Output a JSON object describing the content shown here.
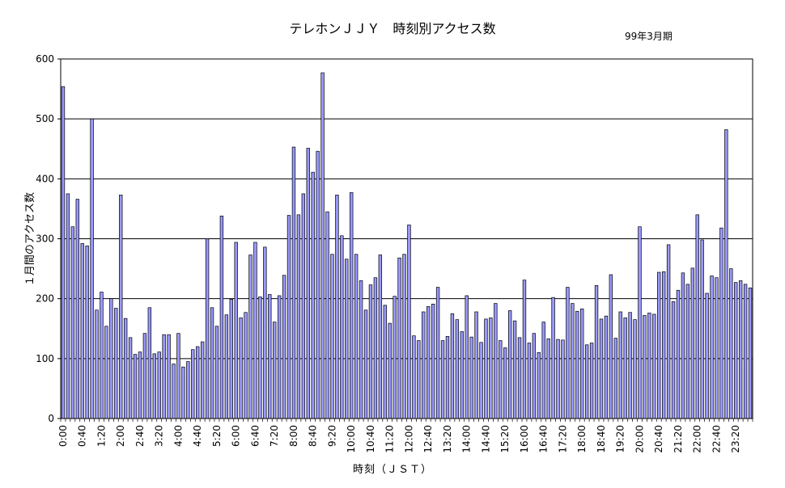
{
  "chart_data": {
    "type": "bar",
    "title": "テレホンＪＪＹ　時刻別アクセス数",
    "subtitle": "99年3月期",
    "xlabel": "時刻（ＪＳＴ）",
    "ylabel": "１月間のアクセス数",
    "ylim": [
      0,
      600
    ],
    "yticks": [
      0,
      100,
      200,
      300,
      400,
      500,
      600
    ],
    "grid": true,
    "bar_color": "#9999ff",
    "interval_minutes": 10,
    "x_tick_labels": [
      "0:00",
      "0:40",
      "1:20",
      "2:00",
      "2:40",
      "3:20",
      "4:00",
      "4:40",
      "5:20",
      "6:00",
      "6:40",
      "7:20",
      "8:00",
      "8:40",
      "9:20",
      "10:00",
      "10:40",
      "11:20",
      "12:00",
      "12:40",
      "13:20",
      "14:00",
      "14:40",
      "15:20",
      "16:00",
      "16:40",
      "17:20",
      "18:00",
      "18:40",
      "19:20",
      "20:00",
      "20:40",
      "21:20",
      "22:00",
      "22:40",
      "23:20"
    ],
    "values": [
      554,
      375,
      320,
      366,
      292,
      288,
      500,
      181,
      211,
      154,
      200,
      184,
      373,
      167,
      135,
      107,
      111,
      142,
      185,
      108,
      111,
      140,
      140,
      91,
      142,
      86,
      95,
      115,
      120,
      128,
      300,
      185,
      154,
      338,
      173,
      199,
      294,
      168,
      177,
      273,
      294,
      203,
      286,
      207,
      161,
      205,
      239,
      339,
      453,
      340,
      375,
      451,
      411,
      446,
      577,
      345,
      274,
      373,
      305,
      266,
      377,
      274,
      230,
      181,
      223,
      235,
      273,
      189,
      159,
      204,
      268,
      274,
      323,
      138,
      130,
      178,
      187,
      191,
      219,
      130,
      137,
      175,
      165,
      145,
      205,
      136,
      178,
      127,
      166,
      168,
      192,
      130,
      118,
      180,
      163,
      135,
      231,
      126,
      142,
      110,
      161,
      133,
      202,
      132,
      131,
      219,
      192,
      179,
      183,
      123,
      126,
      222,
      166,
      171,
      240,
      134,
      178,
      168,
      177,
      165,
      320,
      172,
      176,
      174,
      244,
      245,
      290,
      195,
      214,
      243,
      224,
      251,
      340,
      298,
      209,
      238,
      235,
      318,
      482,
      250,
      227,
      230,
      224,
      218
    ]
  }
}
